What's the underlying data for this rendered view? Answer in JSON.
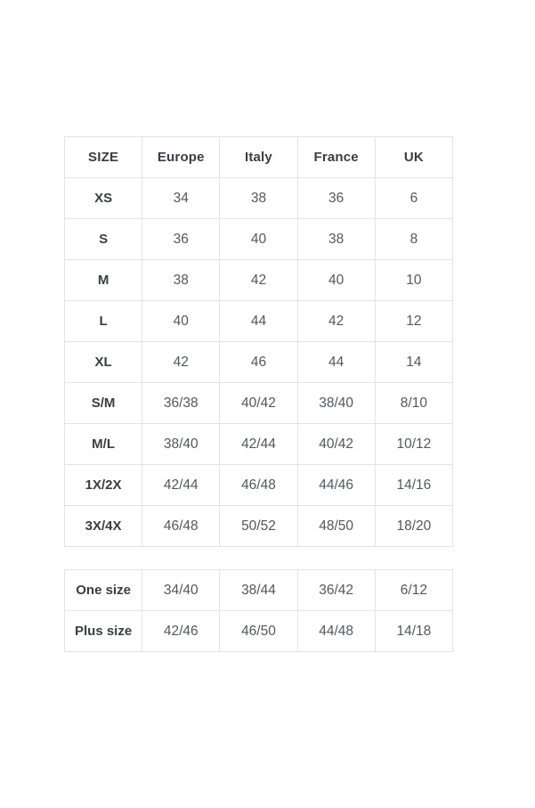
{
  "colors": {
    "border": "#e4e4e4",
    "label_text": "#3a3d42",
    "value_text": "#54575d",
    "background": "#ffffff"
  },
  "main_table": {
    "columns": [
      "SIZE",
      "Europe",
      "Italy",
      "France",
      "UK"
    ],
    "rows": [
      {
        "size": "XS",
        "values": [
          "34",
          "38",
          "36",
          "6"
        ]
      },
      {
        "size": "S",
        "values": [
          "36",
          "40",
          "38",
          "8"
        ]
      },
      {
        "size": "M",
        "values": [
          "38",
          "42",
          "40",
          "10"
        ]
      },
      {
        "size": "L",
        "values": [
          "40",
          "44",
          "42",
          "12"
        ]
      },
      {
        "size": "XL",
        "values": [
          "42",
          "46",
          "44",
          "14"
        ]
      },
      {
        "size": "S/M",
        "values": [
          "36/38",
          "40/42",
          "38/40",
          "8/10"
        ]
      },
      {
        "size": "M/L",
        "values": [
          "38/40",
          "42/44",
          "40/42",
          "10/12"
        ]
      },
      {
        "size": "1X/2X",
        "values": [
          "42/44",
          "46/48",
          "44/46",
          "14/16"
        ]
      },
      {
        "size": "3X/4X",
        "values": [
          "46/48",
          "50/52",
          "48/50",
          "18/20"
        ]
      }
    ]
  },
  "secondary_table": {
    "rows": [
      {
        "size": "One size",
        "values": [
          "34/40",
          "38/44",
          "36/42",
          "6/12"
        ]
      },
      {
        "size": "Plus size",
        "values": [
          "42/46",
          "46/50",
          "44/48",
          "14/18"
        ]
      }
    ]
  }
}
